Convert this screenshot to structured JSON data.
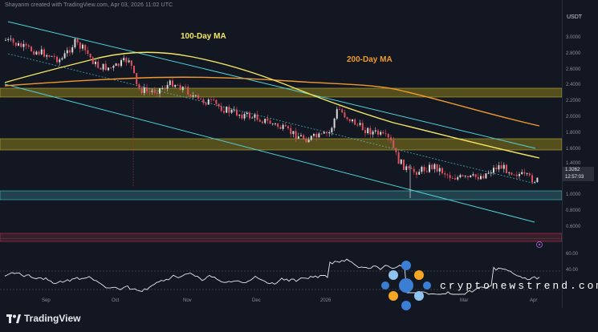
{
  "header": {
    "text": "Shayanm created with TradingView.com, Apr 03, 2026 11:02 UTC"
  },
  "axis": {
    "currency": "USDT",
    "price_ticks": [
      "3.0000",
      "2.8000",
      "2.6000",
      "2.4000",
      "2.2000",
      "2.0000",
      "1.8000",
      "1.6000",
      "1.4000",
      "1.0000",
      "0.8000",
      "0.6000"
    ],
    "time_ticks": [
      "Sep",
      "Oct",
      "Nov",
      "Dec",
      "2026",
      "Mar",
      "Apr"
    ],
    "rsi_ticks": [
      "60.00",
      "40.00"
    ]
  },
  "price_tags": {
    "last_price": "1.3262",
    "countdown": "12:57:03"
  },
  "labels": {
    "ma100": "100-Day MA",
    "ma200": "200-Day MA"
  },
  "colors": {
    "background": "#131722",
    "ma100": "#f5e663",
    "ma200": "#f09a2e",
    "channel": "#4fd1d9",
    "candle_up": "#d9d9d9",
    "candle_down": "#e0515f",
    "supply_zone": "#8a7d1a",
    "support_zone": "#3a7e8c",
    "demand_zone_low": "#7a2f3f",
    "rsi_line": "#e6e8ee"
  },
  "footer": {
    "logo_text": "TradingView"
  },
  "watermark": {
    "text": "cryptonewstrend.com"
  }
}
